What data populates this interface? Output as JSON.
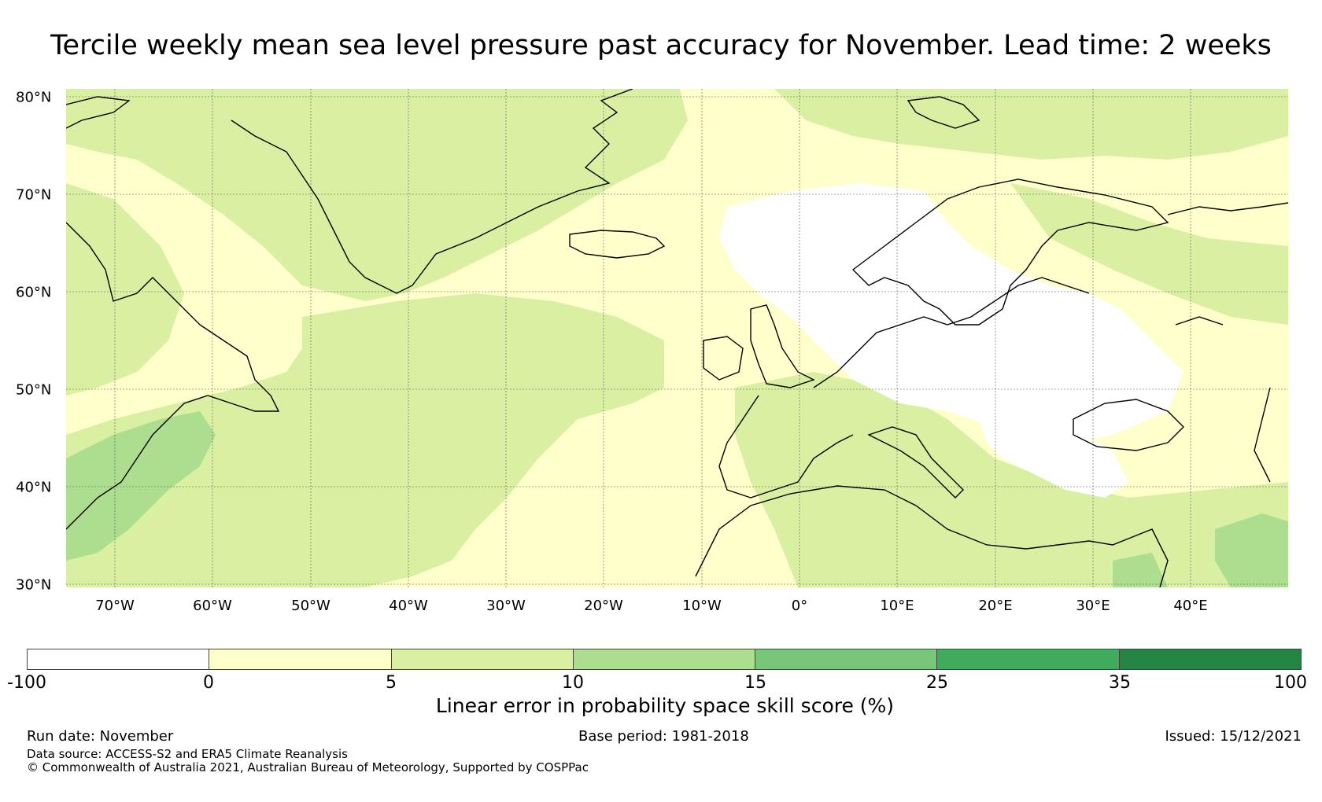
{
  "title": "Tercile weekly mean sea level pressure past accuracy for November. Lead time: 2 weeks",
  "map": {
    "latitude_labels": [
      "80°N",
      "70°N",
      "60°N",
      "50°N",
      "40°N",
      "30°N"
    ],
    "longitude_labels": [
      "70°W",
      "60°W",
      "50°W",
      "40°W",
      "30°W",
      "20°W",
      "10°W",
      "0°",
      "10°E",
      "20°E",
      "30°E",
      "40°E"
    ],
    "extent": {
      "lon_min": -75,
      "lon_max": 50,
      "lat_min": 30,
      "lat_max": 81
    },
    "colors": {
      "negative": "#ffffff",
      "0_5": "#ffffcc",
      "5_10": "#d9f0a3",
      "10_15": "#addd8e",
      "15_25": "#78c679",
      "25_35": "#41ab5d",
      "35_100": "#238443"
    }
  },
  "colorbar": {
    "ticks": [
      "-100",
      "0",
      "5",
      "10",
      "15",
      "25",
      "35",
      "100"
    ],
    "colors": [
      "#ffffff",
      "#ffffcc",
      "#d9f0a3",
      "#addd8e",
      "#78c679",
      "#41ab5d",
      "#238443"
    ],
    "label": "Linear error in probability space skill score (%)"
  },
  "footer": {
    "run_date": "Run date: November",
    "base_period": "Base period: 1981-2018",
    "issued": "Issued: 15/12/2021",
    "data_source": "Data source: ACCESS-S2 and ERA5 Climate Reanalysis",
    "copyright": "© Commonwealth of Australia 2021, Australian Bureau of Meteorology, Supported by COSPPac"
  }
}
